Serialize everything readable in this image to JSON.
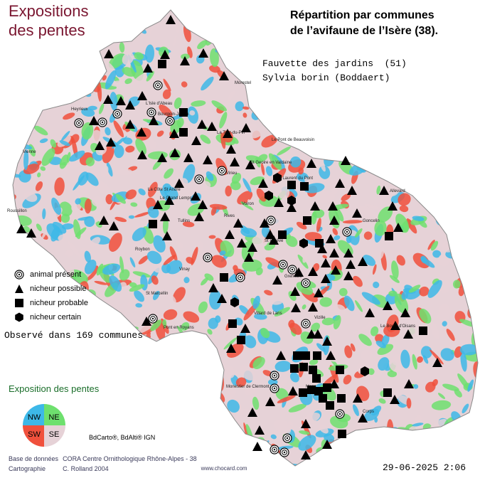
{
  "title": {
    "line1": "Expositions",
    "line2": "des pentes"
  },
  "header": {
    "line1": "Répartition par communes",
    "line2": "de l’avifaune de l’Isère (38)."
  },
  "species": {
    "common": "Fauvette des jardins  (51)",
    "latin": "Sylvia borin (Boddaert)"
  },
  "legend": {
    "items": [
      {
        "symbol": "target-circle",
        "label": "animal présent"
      },
      {
        "symbol": "triangle",
        "label": "nicheur possible"
      },
      {
        "symbol": "square",
        "label": "nicheur probable"
      },
      {
        "symbol": "hexagon",
        "label": "nicheur certain"
      }
    ]
  },
  "observed": "Observé dans 169 communes",
  "exposure": {
    "title": "Exposition des pentes",
    "quadrants": [
      {
        "code": "NW",
        "color": "#3db8e8"
      },
      {
        "code": "NE",
        "color": "#6ee06e"
      },
      {
        "code": "SW",
        "color": "#f0503c"
      },
      {
        "code": "SE",
        "color": "#e6d2d7"
      }
    ]
  },
  "credit": "BdCarto®, BdAlti® IGN",
  "footer": {
    "row1": {
      "label": "Base de données",
      "value": "CORA Centre Ornithologique Rhône-Alpes - 38"
    },
    "row2": {
      "label": "Cartographie",
      "value": "C. Rolland 2004",
      "url": "www.chocard.com"
    }
  },
  "date": "29-06-2025 2:06",
  "map_labels": [
    "Morestel",
    "L'Isle d'Abeau",
    "Bourgoin-Jallieu",
    "La Tour-du-Pin",
    "Le Pont de Beauvoisin",
    "Vienne",
    "Roussillon",
    "Virieu",
    "St Geoire en Valdaine",
    "La Côte St André",
    "Le Grand Lemps",
    "St Laurent du Pont",
    "Goncelin",
    "Allevard",
    "Voiron",
    "Rives",
    "Tullins",
    "Vinay",
    "St Marcellin",
    "Pont en Royans",
    "St Egrève",
    "Grenoble",
    "Vizille",
    "Villard de Lans",
    "Le Bourg d'Oisans",
    "Mens",
    "Corps",
    "Monestier de Clermont",
    "Roybon",
    "Heyrieux"
  ]
}
